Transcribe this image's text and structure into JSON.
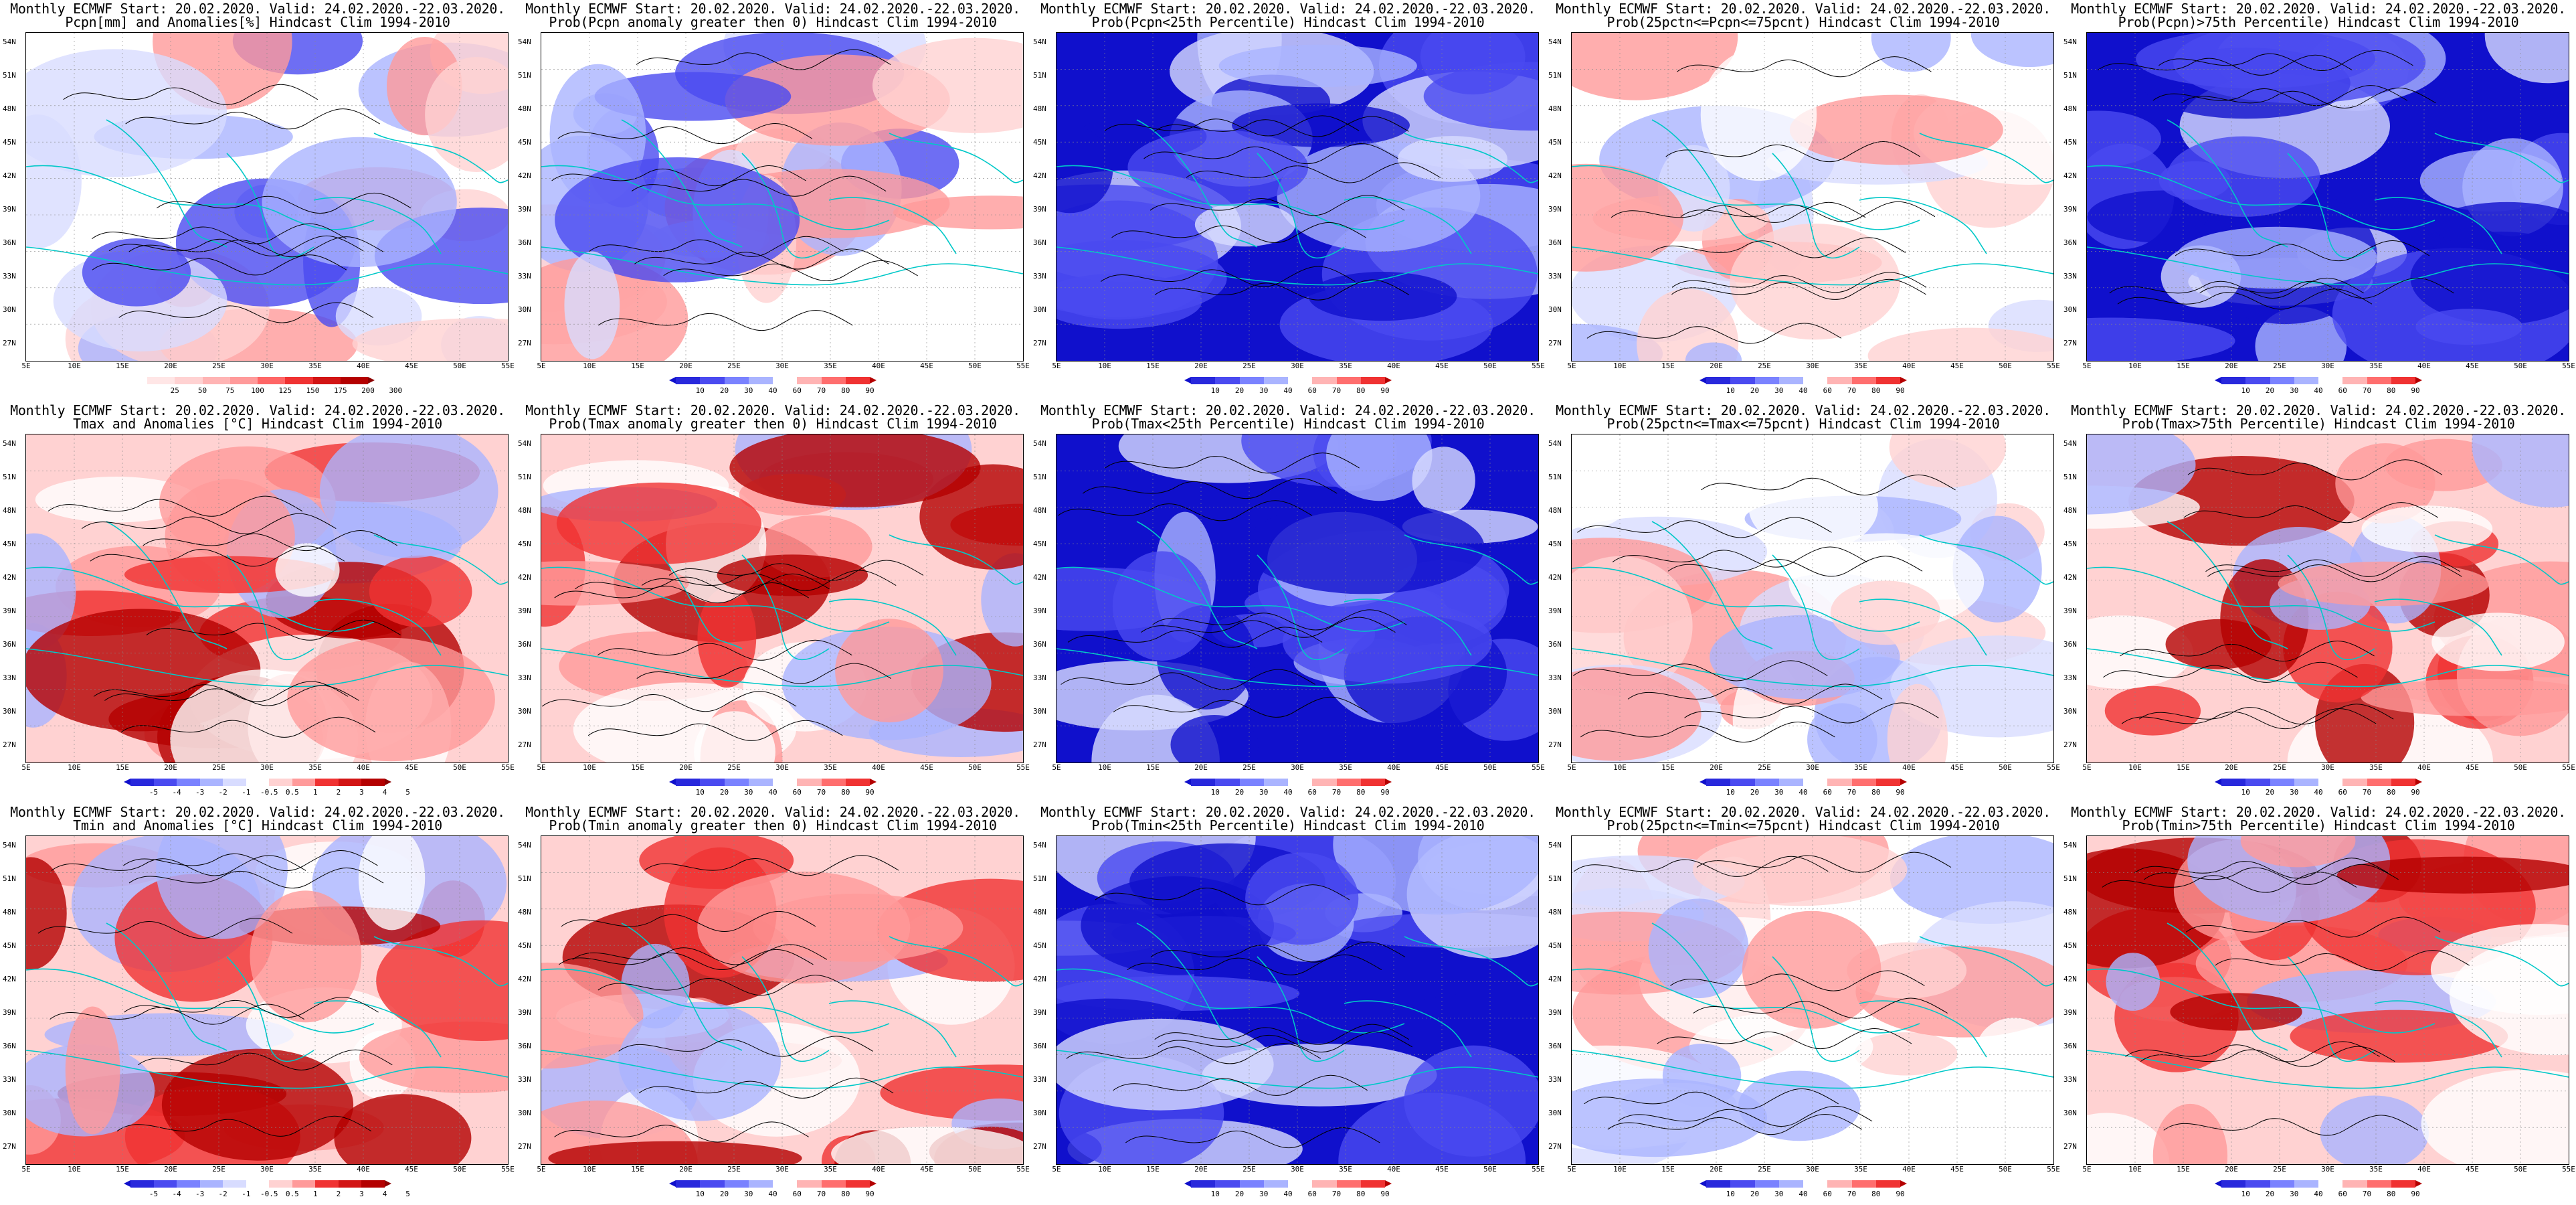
{
  "colors": {
    "deep_blue": "#1010cc",
    "mid_blue": "#4a4af0",
    "light_blue": "#aab4ff",
    "pale_blue": "#d8dcff",
    "white": "#ffffff",
    "pale_red": "#ffd2d2",
    "light_red": "#ff9a9a",
    "mid_red": "#f03232",
    "deep_red": "#b40000",
    "coast": "#00c8c8",
    "contour": "#000000"
  },
  "axes": {
    "lat_labels": [
      "54N",
      "51N",
      "48N",
      "45N",
      "42N",
      "39N",
      "36N",
      "33N",
      "30N",
      "27N"
    ],
    "lon_labels": [
      "5E",
      "10E",
      "15E",
      "20E",
      "25E",
      "30E",
      "35E",
      "40E",
      "45E",
      "50E",
      "55E"
    ]
  },
  "colorbars": {
    "pcpn_anom": [
      "25",
      "50",
      "75",
      "100",
      "125",
      "150",
      "175",
      "200",
      "300"
    ],
    "prob": [
      "10",
      "20",
      "30",
      "40",
      "60",
      "70",
      "80",
      "90"
    ],
    "temp_anom": [
      "-5",
      "-4",
      "-3",
      "-2",
      "-1",
      "-0.5",
      "0.5",
      "1",
      "2",
      "3",
      "4",
      "5"
    ]
  },
  "panels": [
    {
      "title1": "Monthly ECMWF Start: 20.02.2020. Valid: 24.02.2020.-22.03.2020.",
      "title2": "Pcpn[mm] and Anomalies[%] Hindcast Clim 1994-2010",
      "bar": "pcpn_anom",
      "field": "mixed"
    },
    {
      "title1": "Monthly ECMWF Start: 20.02.2020. Valid: 24.02.2020.-22.03.2020.",
      "title2": "Prob(Pcpn anomaly greater then 0) Hindcast Clim 1994-2010",
      "bar": "prob",
      "field": "mixed"
    },
    {
      "title1": "Monthly ECMWF Start: 20.02.2020. Valid: 24.02.2020.-22.03.2020.",
      "title2": "Prob(Pcpn<25th Percentile) Hindcast Clim 1994-2010",
      "bar": "prob",
      "field": "blue"
    },
    {
      "title1": "Monthly ECMWF Start: 20.02.2020. Valid: 24.02.2020.-22.03.2020.",
      "title2": "Prob(25pctn<=Pcpn<=75pcnt) Hindcast Clim 1994-2010",
      "bar": "prob",
      "field": "pale"
    },
    {
      "title1": "Monthly ECMWF Start: 20.02.2020. Valid: 24.02.2020.-22.03.2020.",
      "title2": "Prob(Pcpn)>75th Percentile) Hindcast Clim 1994-2010",
      "bar": "prob",
      "field": "blue"
    },
    {
      "title1": "Monthly ECMWF Start: 20.02.2020. Valid: 24.02.2020.-22.03.2020.",
      "title2": "Tmax and Anomalies [°C] Hindcast Clim 1994-2010",
      "bar": "temp_anom",
      "field": "warm"
    },
    {
      "title1": "Monthly ECMWF Start: 20.02.2020. Valid: 24.02.2020.-22.03.2020.",
      "title2": "Prob(Tmax anomaly greater then 0) Hindcast Clim 1994-2010",
      "bar": "prob",
      "field": "warm"
    },
    {
      "title1": "Monthly ECMWF Start: 20.02.2020. Valid: 24.02.2020.-22.03.2020.",
      "title2": "Prob(Tmax<25th Percentile) Hindcast Clim 1994-2010",
      "bar": "prob",
      "field": "blue"
    },
    {
      "title1": "Monthly ECMWF Start: 20.02.2020. Valid: 24.02.2020.-22.03.2020.",
      "title2": "Prob(25pctn<=Tmax<=75pcnt) Hindcast Clim 1994-2010",
      "bar": "prob",
      "field": "pale"
    },
    {
      "title1": "Monthly ECMWF Start: 20.02.2020. Valid: 24.02.2020.-22.03.2020.",
      "title2": "Prob(Tmax>75th Percentile) Hindcast Clim 1994-2010",
      "bar": "prob",
      "field": "warm"
    },
    {
      "title1": "Monthly ECMWF Start: 20.02.2020. Valid: 24.02.2020.-22.03.2020.",
      "title2": "Tmin and Anomalies [°C] Hindcast Clim 1994-2010",
      "bar": "temp_anom",
      "field": "warm"
    },
    {
      "title1": "Monthly ECMWF Start: 20.02.2020. Valid: 24.02.2020.-22.03.2020.",
      "title2": "Prob(Tmin anomaly greater then 0) Hindcast Clim 1994-2010",
      "bar": "prob",
      "field": "warm"
    },
    {
      "title1": "Monthly ECMWF Start: 20.02.2020. Valid: 24.02.2020.-22.03.2020.",
      "title2": "Prob(Tmin<25th Percentile) Hindcast Clim 1994-2010",
      "bar": "prob",
      "field": "blue"
    },
    {
      "title1": "Monthly ECMWF Start: 20.02.2020. Valid: 24.02.2020.-22.03.2020.",
      "title2": "Prob(25pctn<=Tmin<=75pcnt) Hindcast Clim 1994-2010",
      "bar": "prob",
      "field": "pale"
    },
    {
      "title1": "Monthly ECMWF Start: 20.02.2020. Valid: 24.02.2020.-22.03.2020.",
      "title2": "Prob(Tmin>75th Percentile) Hindcast Clim 1994-2010",
      "bar": "prob",
      "field": "warm"
    }
  ]
}
